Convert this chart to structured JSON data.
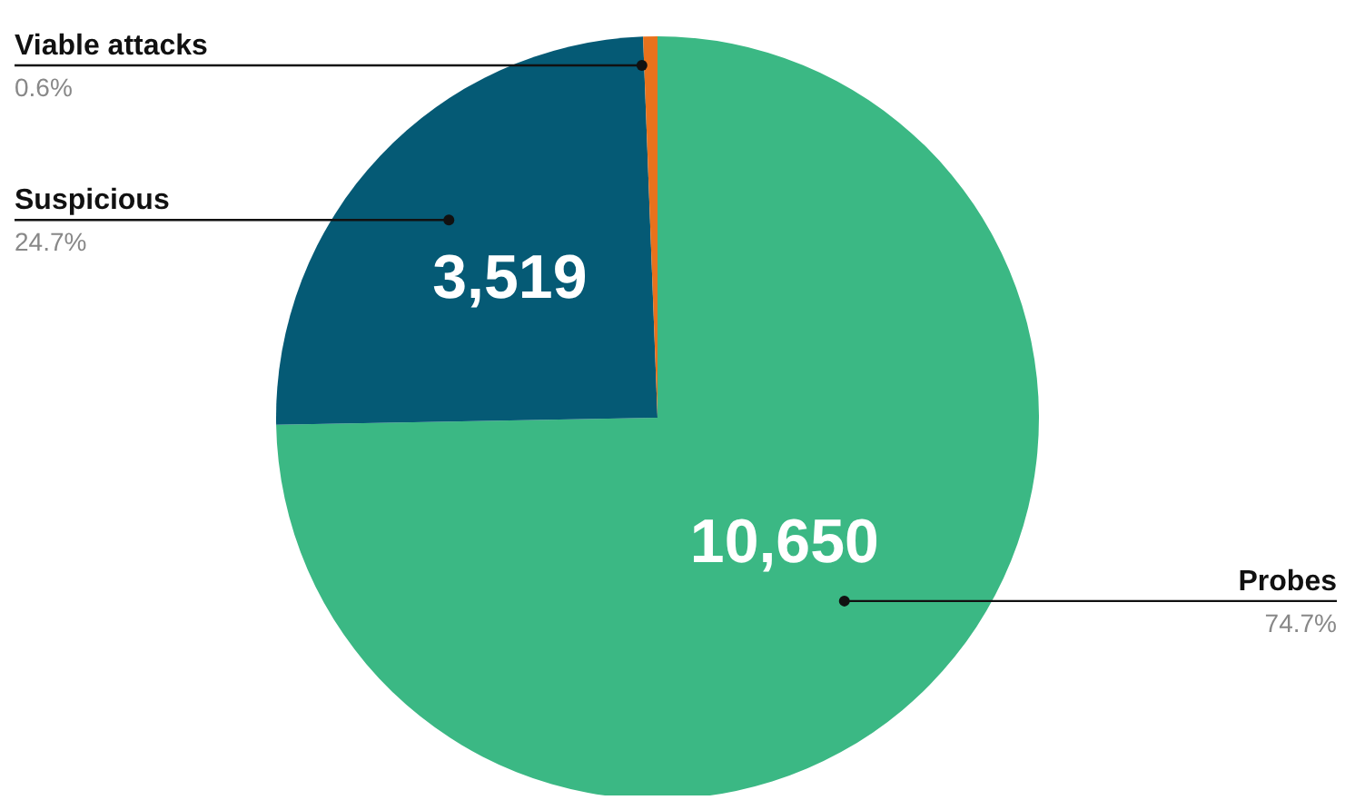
{
  "chart_data": {
    "type": "pie",
    "categories": [
      "Probes",
      "Suspicious",
      "Viable attacks"
    ],
    "values": [
      10650,
      3519,
      86
    ],
    "colors": [
      "#3bb884",
      "#055a75",
      "#e8721c"
    ],
    "value_labels": [
      "10,650",
      "3,519",
      null
    ],
    "annotations": [
      {
        "text": "74.7%",
        "x": "Probes"
      },
      {
        "text": "24.7%",
        "x": "Suspicious"
      },
      {
        "text": "0.6%",
        "x": "Viable attacks"
      }
    ],
    "legend": false
  }
}
